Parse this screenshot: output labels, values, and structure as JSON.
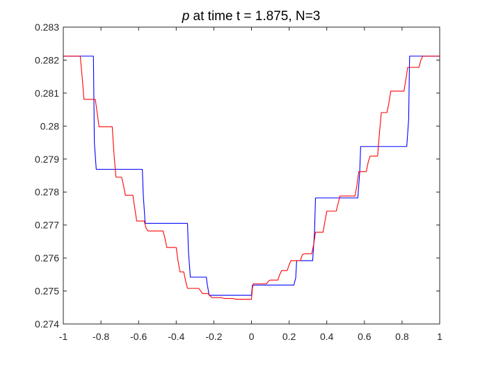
{
  "chart_data": {
    "type": "line",
    "title_var": "p",
    "title_rest": " at time t = 1.875, N=3",
    "xlabel": "",
    "ylabel": "",
    "xlim": [
      -1,
      1
    ],
    "ylim": [
      0.274,
      0.283
    ],
    "xticks": [
      "-1",
      "-0.8",
      "-0.6",
      "-0.4",
      "-0.2",
      "0",
      "0.2",
      "0.4",
      "0.6",
      "0.8",
      "1"
    ],
    "yticks": [
      "0.274",
      "0.275",
      "0.276",
      "0.277",
      "0.278",
      "0.279",
      "0.28",
      "0.281",
      "0.282",
      "0.283"
    ],
    "grid": false,
    "legend": "none",
    "series": [
      {
        "color": "#0000ff",
        "x": [
          -1,
          -0.84,
          -0.835,
          -0.825,
          -0.58,
          -0.575,
          -0.565,
          -0.34,
          -0.335,
          -0.325,
          -0.24,
          -0.235,
          -0.225,
          0,
          0.005,
          0.225,
          0.235,
          0.24,
          0.325,
          0.335,
          0.34,
          0.565,
          0.575,
          0.58,
          0.825,
          0.835,
          0.84,
          1
        ],
        "y": [
          0.28212,
          0.28212,
          0.2795,
          0.27869,
          0.27869,
          0.2779,
          0.27705,
          0.27705,
          0.2762,
          0.27542,
          0.27542,
          0.2752,
          0.27487,
          0.27487,
          0.27518,
          0.27518,
          0.2754,
          0.27592,
          0.27592,
          0.2768,
          0.27782,
          0.27782,
          0.2786,
          0.27938,
          0.27938,
          0.2802,
          0.28212,
          0.28212
        ]
      },
      {
        "color": "#ff0000",
        "x": [
          -1,
          -0.91,
          -0.9,
          -0.89,
          -0.83,
          -0.82,
          -0.81,
          -0.74,
          -0.73,
          -0.72,
          -0.69,
          -0.68,
          -0.67,
          -0.63,
          -0.62,
          -0.61,
          -0.57,
          -0.56,
          -0.55,
          -0.47,
          -0.46,
          -0.45,
          -0.4,
          -0.39,
          -0.38,
          -0.36,
          -0.35,
          -0.34,
          -0.28,
          -0.27,
          -0.26,
          -0.23,
          -0.22,
          -0.21,
          -0.16,
          -0.15,
          -0.14,
          -0.1,
          -0.09,
          -0.08,
          0,
          0.005,
          0.01,
          0.08,
          0.09,
          0.1,
          0.14,
          0.15,
          0.16,
          0.19,
          0.2,
          0.21,
          0.26,
          0.27,
          0.28,
          0.32,
          0.33,
          0.34,
          0.38,
          0.39,
          0.4,
          0.45,
          0.46,
          0.47,
          0.55,
          0.56,
          0.57,
          0.61,
          0.62,
          0.63,
          0.67,
          0.68,
          0.69,
          0.72,
          0.73,
          0.74,
          0.81,
          0.82,
          0.83,
          0.89,
          0.9,
          0.91,
          1
        ],
        "y": [
          0.28212,
          0.28212,
          0.2815,
          0.28081,
          0.28081,
          0.2804,
          0.27998,
          0.27998,
          0.2791,
          0.27845,
          0.27845,
          0.2782,
          0.2779,
          0.2779,
          0.2775,
          0.27712,
          0.27712,
          0.2769,
          0.27682,
          0.27682,
          0.2766,
          0.27632,
          0.27632,
          0.2759,
          0.27558,
          0.27558,
          0.2753,
          0.27508,
          0.27508,
          0.275,
          0.27492,
          0.27492,
          0.27485,
          0.2748,
          0.2748,
          0.27478,
          0.27477,
          0.27477,
          0.27476,
          0.27475,
          0.27475,
          0.2751,
          0.27522,
          0.27522,
          0.2753,
          0.27533,
          0.27533,
          0.2755,
          0.27562,
          0.27562,
          0.2758,
          0.27592,
          0.27592,
          0.2761,
          0.27613,
          0.27613,
          0.2764,
          0.27678,
          0.27678,
          0.2771,
          0.27742,
          0.27742,
          0.27765,
          0.27788,
          0.27788,
          0.2782,
          0.27862,
          0.27862,
          0.2789,
          0.27909,
          0.27909,
          0.2798,
          0.28041,
          0.28041,
          0.2807,
          0.28106,
          0.28106,
          0.2814,
          0.28178,
          0.28178,
          0.282,
          0.28212,
          0.28212
        ]
      }
    ]
  }
}
